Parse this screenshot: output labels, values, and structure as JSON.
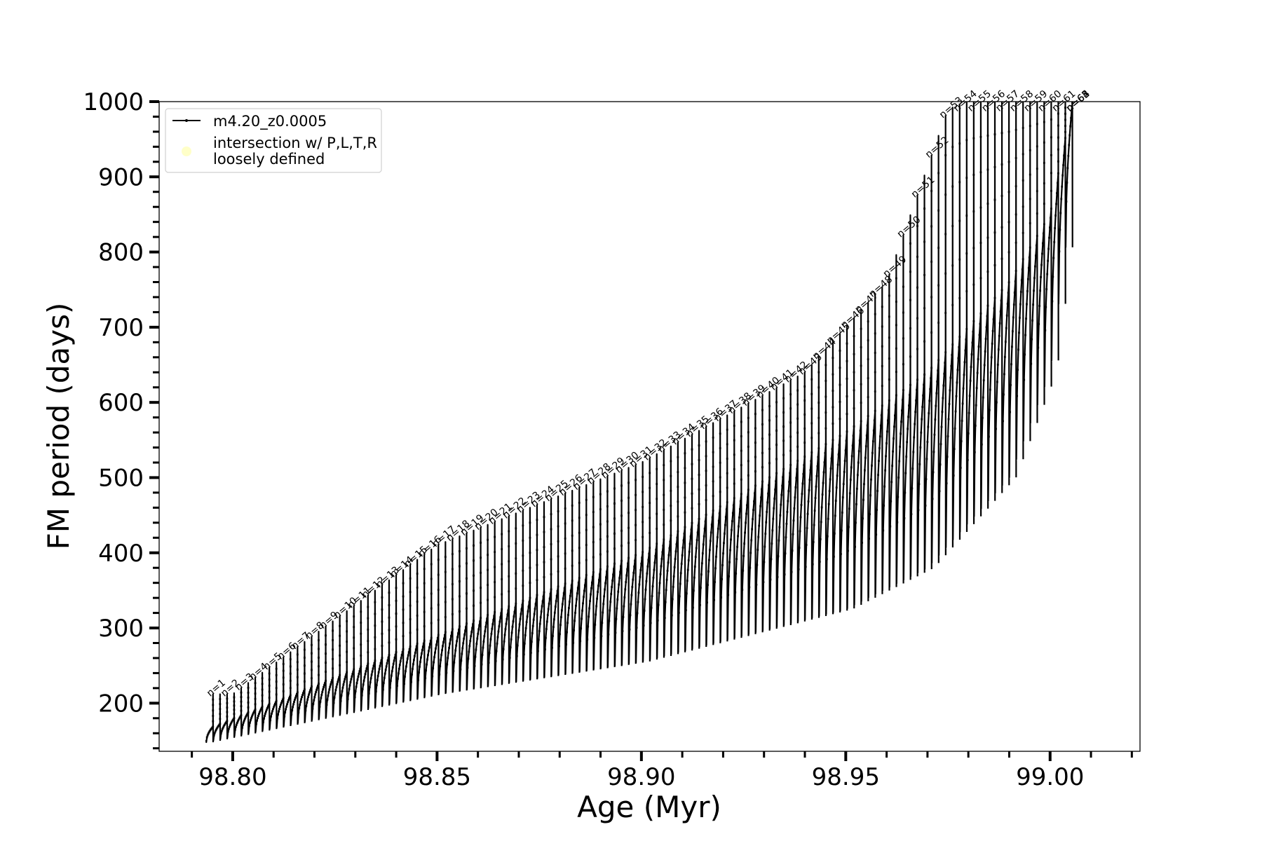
{
  "chart_data": {
    "type": "line",
    "xlabel": "Age (Myr)",
    "ylabel": "FM period (days)",
    "xlim": [
      98.782,
      99.022
    ],
    "ylim": [
      136,
      1000
    ],
    "xticks": [
      98.8,
      98.85,
      98.9,
      98.95,
      99.0
    ],
    "xtick_labels": [
      "98.80",
      "98.85",
      "98.90",
      "98.95",
      "99.00"
    ],
    "yticks": [
      200,
      300,
      400,
      500,
      600,
      700,
      800,
      900,
      1000
    ],
    "ytick_labels": [
      "200",
      "300",
      "400",
      "500",
      "600",
      "700",
      "800",
      "900",
      "1000"
    ],
    "grid": false,
    "legend": {
      "placement": "upper-left",
      "entries": [
        {
          "label": "m4.20_z0.0005",
          "marker": "line-with-dots",
          "color": "#000000"
        },
        {
          "label_line1": "intersection w/ P,L,T,R",
          "label_line2": "loosely defined",
          "marker": "circle",
          "color": "#ffffc8"
        }
      ]
    },
    "series": [
      {
        "name": "m4.20_z0.0005",
        "color": "#000000",
        "x_start": 98.7935,
        "x_end": 99.0055,
        "pulses": 123,
        "baseline_points": [
          [
            98.7935,
            148
          ],
          [
            98.85,
            212
          ],
          [
            98.9,
            255
          ],
          [
            98.95,
            325
          ],
          [
            98.97,
            380
          ],
          [
            98.99,
            500
          ],
          [
            99.0,
            640
          ],
          [
            99.0055,
            880
          ]
        ],
        "upper_points": [
          [
            98.7935,
            165
          ],
          [
            98.85,
            290
          ],
          [
            98.9,
            400
          ],
          [
            98.95,
            560
          ],
          [
            98.97,
            640
          ],
          [
            98.99,
            760
          ],
          [
            99.0,
            850
          ],
          [
            99.0055,
            1000
          ]
        ],
        "spike_points": [
          [
            98.8,
            212
          ],
          [
            98.85,
            410
          ],
          [
            98.9,
            520
          ],
          [
            98.94,
            640
          ],
          [
            98.96,
            760
          ],
          [
            98.975,
            990
          ],
          [
            98.98,
            1000
          ]
        ]
      }
    ],
    "annotations": [
      "n=1",
      "n=2",
      "n=3",
      "n=4",
      "n=5",
      "n=6",
      "n=7",
      "n=8",
      "n=9",
      "n=10",
      "n=11",
      "n=12",
      "n=13",
      "n=14",
      "n=15",
      "n=16",
      "n=17",
      "n=18",
      "n=19",
      "n=20",
      "n=21",
      "n=22",
      "n=23",
      "n=24",
      "n=25",
      "n=26",
      "n=27",
      "n=28",
      "n=29",
      "n=30",
      "n=31",
      "n=32",
      "n=33",
      "n=34",
      "n=35",
      "n=36",
      "n=37",
      "n=38",
      "n=39",
      "n=40",
      "n=41",
      "n=42",
      "n=43",
      "n=44",
      "n=45",
      "n=46",
      "n=47",
      "n=48",
      "n=49",
      "n=50",
      "n=51",
      "n=52",
      "n=53",
      "n=54",
      "n=55",
      "n=56",
      "n=57",
      "n=58",
      "n=59",
      "n=60",
      "n=61",
      "n=62",
      "n=63",
      "n=64",
      "n=65"
    ]
  }
}
